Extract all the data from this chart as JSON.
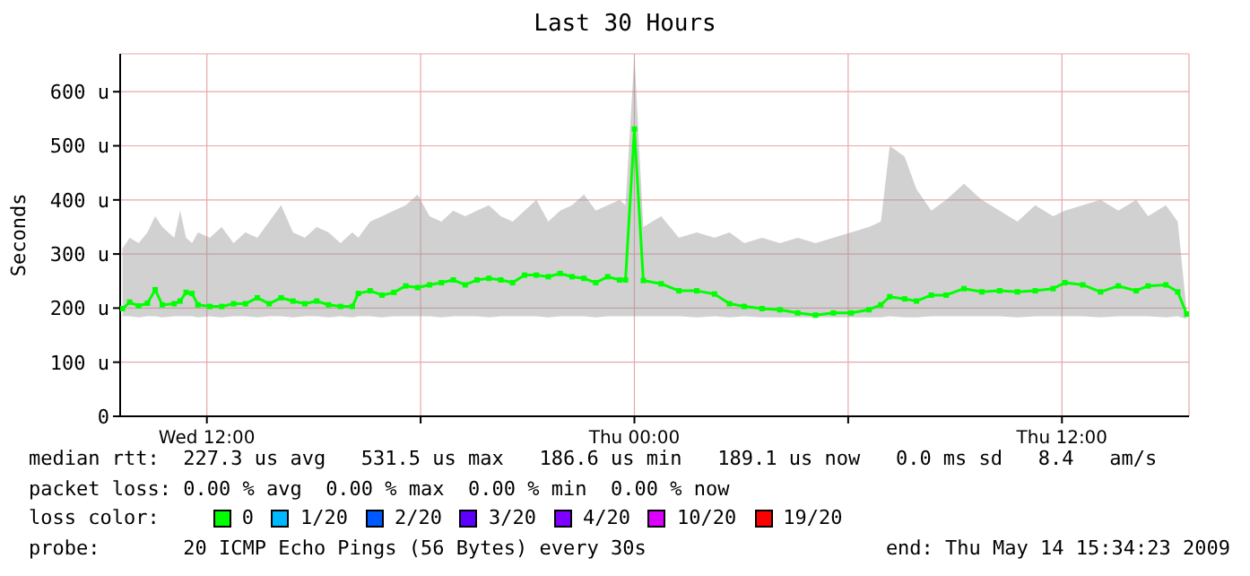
{
  "chart_data": {
    "type": "line",
    "title": "Last 30 Hours",
    "ylabel": "Seconds",
    "legend_title": "loss color:",
    "legend": "bottom",
    "grid": true,
    "marker": "square",
    "line_style": "solid",
    "xlim": [
      "2009-05-13T09:34",
      "2009-05-14T15:34"
    ],
    "xticks": [
      {
        "value": "2009-05-13T12:00",
        "label": "Wed 12:00"
      },
      {
        "value": "2009-05-13T18:00",
        "label": null
      },
      {
        "value": "2009-05-14T00:00",
        "label": "Thu 00:00"
      },
      {
        "value": "2009-05-14T06:00",
        "label": null
      },
      {
        "value": "2009-05-14T12:00",
        "label": "Thu 12:00"
      }
    ],
    "ylim": [
      0,
      670
    ],
    "yticks": [
      0,
      {
        "value": 100,
        "label": "100 u"
      },
      {
        "value": 200,
        "label": "200 u"
      },
      {
        "value": 300,
        "label": "300 u"
      },
      {
        "value": 400,
        "label": "400 u"
      },
      {
        "value": 500,
        "label": "500 u"
      },
      {
        "value": 600,
        "label": "600 u"
      }
    ],
    "series": [
      {
        "name": "0",
        "color": "#00ff00",
        "x": [
          "2009-05-13T09:38",
          "2009-05-13T09:50",
          "2009-05-13T10:05",
          "2009-05-13T10:20",
          "2009-05-13T10:33",
          "2009-05-13T10:45",
          "2009-05-13T11:05",
          "2009-05-13T11:15",
          "2009-05-13T11:25",
          "2009-05-13T11:35",
          "2009-05-13T11:45",
          "2009-05-13T12:05",
          "2009-05-13T12:25",
          "2009-05-13T12:45",
          "2009-05-13T13:05",
          "2009-05-13T13:25",
          "2009-05-13T13:45",
          "2009-05-13T14:05",
          "2009-05-13T14:25",
          "2009-05-13T14:45",
          "2009-05-13T15:05",
          "2009-05-13T15:25",
          "2009-05-13T15:45",
          "2009-05-13T16:05",
          "2009-05-13T16:15",
          "2009-05-13T16:35",
          "2009-05-13T16:55",
          "2009-05-13T17:15",
          "2009-05-13T17:35",
          "2009-05-13T17:55",
          "2009-05-13T18:15",
          "2009-05-13T18:35",
          "2009-05-13T18:55",
          "2009-05-13T19:15",
          "2009-05-13T19:35",
          "2009-05-13T19:55",
          "2009-05-13T20:15",
          "2009-05-13T20:35",
          "2009-05-13T20:55",
          "2009-05-13T21:15",
          "2009-05-13T21:35",
          "2009-05-13T21:55",
          "2009-05-13T22:15",
          "2009-05-13T22:35",
          "2009-05-13T22:55",
          "2009-05-13T23:15",
          "2009-05-13T23:35",
          "2009-05-13T23:45",
          "2009-05-14T00:00",
          "2009-05-14T00:15",
          "2009-05-14T00:45",
          "2009-05-14T01:15",
          "2009-05-14T01:45",
          "2009-05-14T02:15",
          "2009-05-14T02:40",
          "2009-05-14T03:05",
          "2009-05-14T03:35",
          "2009-05-14T04:05",
          "2009-05-14T04:35",
          "2009-05-14T05:05",
          "2009-05-14T05:35",
          "2009-05-14T06:05",
          "2009-05-14T06:35",
          "2009-05-14T06:55",
          "2009-05-14T07:10",
          "2009-05-14T07:35",
          "2009-05-14T07:55",
          "2009-05-14T08:20",
          "2009-05-14T08:45",
          "2009-05-14T09:15",
          "2009-05-14T09:45",
          "2009-05-14T10:15",
          "2009-05-14T10:45",
          "2009-05-14T11:15",
          "2009-05-14T11:45",
          "2009-05-14T12:05",
          "2009-05-14T12:35",
          "2009-05-14T13:05",
          "2009-05-14T13:35",
          "2009-05-14T14:05",
          "2009-05-14T14:25",
          "2009-05-14T14:55",
          "2009-05-14T15:15",
          "2009-05-14T15:30"
        ],
        "values": [
          199,
          211,
          204,
          209,
          234,
          206,
          208,
          213,
          229,
          227,
          206,
          203,
          203,
          208,
          208,
          219,
          208,
          219,
          213,
          208,
          213,
          206,
          203,
          203,
          227,
          232,
          224,
          229,
          241,
          238,
          243,
          247,
          252,
          243,
          252,
          255,
          252,
          247,
          261,
          261,
          258,
          264,
          258,
          255,
          247,
          258,
          252,
          252,
          531,
          251,
          245,
          232,
          232,
          226,
          208,
          203,
          199,
          197,
          191,
          187,
          191,
          191,
          197,
          206,
          221,
          217,
          213,
          224,
          224,
          236,
          230,
          232,
          230,
          232,
          236,
          247,
          243,
          230,
          241,
          232,
          241,
          243,
          230,
          189
        ],
        "lower": [
          185,
          185,
          183,
          185,
          185,
          183,
          185,
          185,
          185,
          185,
          183,
          185,
          183,
          185,
          185,
          183,
          185,
          185,
          183,
          185,
          185,
          183,
          185,
          183,
          185,
          185,
          183,
          185,
          185,
          185,
          185,
          183,
          185,
          185,
          185,
          183,
          185,
          185,
          185,
          185,
          183,
          185,
          185,
          185,
          183,
          185,
          185,
          185,
          185,
          185,
          185,
          185,
          183,
          185,
          183,
          185,
          183,
          183,
          183,
          183,
          183,
          183,
          183,
          183,
          185,
          183,
          183,
          185,
          185,
          185,
          185,
          185,
          183,
          185,
          185,
          185,
          185,
          183,
          185,
          185,
          185,
          183,
          185,
          180
        ],
        "upper": [
          310,
          330,
          320,
          340,
          370,
          350,
          330,
          380,
          330,
          320,
          340,
          330,
          350,
          320,
          340,
          330,
          360,
          390,
          340,
          330,
          350,
          340,
          320,
          340,
          330,
          360,
          370,
          380,
          390,
          410,
          370,
          360,
          380,
          370,
          380,
          390,
          370,
          360,
          380,
          400,
          360,
          380,
          390,
          410,
          380,
          390,
          400,
          390,
          667,
          350,
          370,
          330,
          340,
          330,
          340,
          320,
          330,
          320,
          330,
          320,
          330,
          340,
          350,
          360,
          500,
          480,
          420,
          380,
          400,
          430,
          400,
          380,
          360,
          390,
          370,
          380,
          390,
          400,
          380,
          400,
          370,
          390,
          360,
          195
        ]
      },
      {
        "name": "1/20",
        "color": "#00b8ff"
      },
      {
        "name": "2/20",
        "color": "#0059ff"
      },
      {
        "name": "3/20",
        "color": "#5e00ff"
      },
      {
        "name": "4/20",
        "color": "#7e00ff"
      },
      {
        "name": "10/20",
        "color": "#dd00ff"
      },
      {
        "name": "19/20",
        "color": "#ff0000"
      }
    ],
    "annotations": [
      "median rtt:  227.3 us avg   531.5 us max   186.6 us min   189.1 us now   0.0 ms sd   8.4   am/s",
      "packet loss: 0.00 % avg  0.00 % max  0.00 % min  0.00 % now",
      "probe:       20 ICMP Echo Pings (56 Bytes) every 30s",
      "end: Thu May 14 15:34:23 2009"
    ]
  }
}
